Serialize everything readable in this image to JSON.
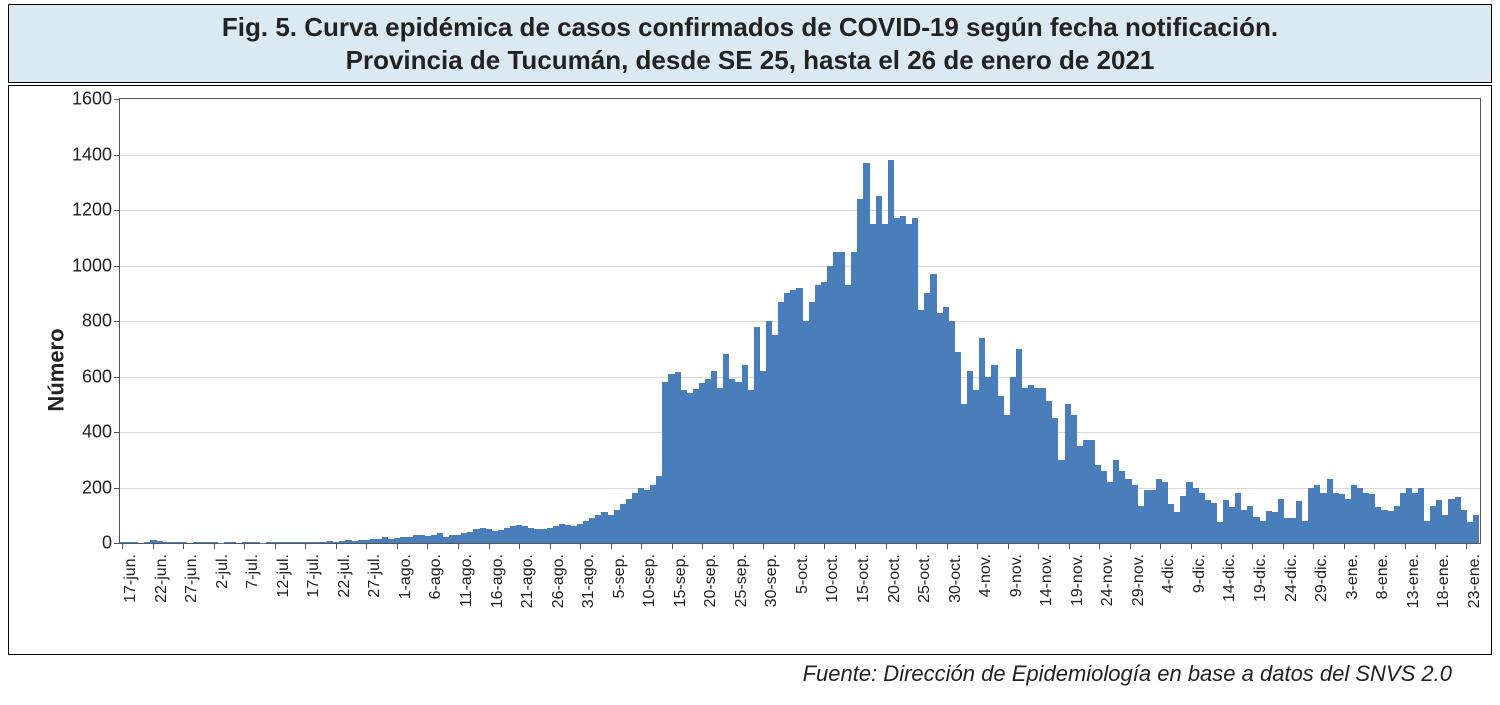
{
  "title_line1": "Fig. 5. Curva epidémica de casos confirmados de COVID-19 según fecha notificación.",
  "title_line2": "Provincia de Tucumán, desde SE 25, hasta el 26 de enero de 2021",
  "source_text": "Fuente: Dirección de Epidemiología en base a datos del SNVS 2.0",
  "chart": {
    "type": "bar",
    "ylabel": "Número",
    "ylim_min": 0,
    "ylim_max": 1600,
    "ytick_step": 200,
    "yticks": [
      0,
      200,
      400,
      600,
      800,
      1000,
      1200,
      1400,
      1600
    ],
    "bar_color": "#4a7ebb",
    "background_color": "#ffffff",
    "grid_color": "#d9d9d9",
    "axis_color": "#555555",
    "title_bg": "#dbeaf2",
    "title_fontsize": 26,
    "ylabel_fontsize": 22,
    "tick_fontsize": 18,
    "xtick_fontsize": 16,
    "source_fontsize": 22,
    "x_labels": [
      "17-jun.",
      "22-jun.",
      "27-jun.",
      "2-jul.",
      "7-jul.",
      "12-jul.",
      "17-jul.",
      "22-jul.",
      "27-jul.",
      "1-ago.",
      "6-ago.",
      "11-ago.",
      "16-ago.",
      "21-ago.",
      "26-ago.",
      "31-ago.",
      "5-sep.",
      "10-sep.",
      "15-sep.",
      "20-sep.",
      "25-sep.",
      "30-sep.",
      "5-oct.",
      "10-oct.",
      "15-oct.",
      "20-oct.",
      "25-oct.",
      "30-oct.",
      "4-nov.",
      "9-nov.",
      "14-nov.",
      "19-nov.",
      "24-nov.",
      "29-nov.",
      "4-dic.",
      "9-dic.",
      "14-dic.",
      "19-dic.",
      "24-dic.",
      "29-dic.",
      "3-ene.",
      "8-ene.",
      "13-ene.",
      "18-ene.",
      "23-ene."
    ],
    "x_label_interval": 5,
    "values": [
      2,
      3,
      4,
      0,
      2,
      10,
      8,
      5,
      3,
      4,
      2,
      0,
      3,
      3,
      4,
      2,
      1,
      2,
      3,
      0,
      2,
      3,
      2,
      1,
      3,
      4,
      5,
      3,
      4,
      4,
      5,
      2,
      3,
      4,
      6,
      5,
      7,
      10,
      8,
      12,
      10,
      15,
      14,
      20,
      15,
      18,
      20,
      22,
      30,
      28,
      25,
      30,
      35,
      22,
      30,
      28,
      35,
      40,
      50,
      55,
      50,
      45,
      48,
      55,
      60,
      65,
      60,
      55,
      50,
      50,
      55,
      60,
      70,
      65,
      60,
      70,
      80,
      90,
      100,
      110,
      100,
      120,
      140,
      160,
      180,
      200,
      190,
      210,
      240,
      580,
      610,
      615,
      550,
      540,
      555,
      575,
      590,
      620,
      560,
      680,
      590,
      580,
      640,
      550,
      780,
      620,
      800,
      750,
      870,
      900,
      910,
      920,
      800,
      870,
      930,
      940,
      1000,
      1050,
      1050,
      930,
      1050,
      1240,
      1370,
      1150,
      1250,
      1150,
      1380,
      1170,
      1180,
      1150,
      1170,
      840,
      900,
      970,
      830,
      850,
      800,
      690,
      500,
      620,
      550,
      740,
      600,
      640,
      530,
      460,
      600,
      700,
      560,
      570,
      560,
      560,
      510,
      450,
      300,
      500,
      460,
      350,
      370,
      370,
      280,
      260,
      220,
      300,
      260,
      230,
      210,
      135,
      190,
      190,
      230,
      220,
      140,
      110,
      170,
      220,
      200,
      180,
      155,
      145,
      75,
      155,
      130,
      180,
      120,
      135,
      95,
      80,
      115,
      110,
      160,
      90,
      90,
      150,
      80,
      200,
      210,
      180,
      230,
      180,
      175,
      160,
      210,
      200,
      180,
      175,
      130,
      120,
      115,
      135,
      180,
      200,
      180,
      200,
      80,
      135,
      155,
      100,
      160,
      165,
      120,
      75,
      100
    ]
  }
}
